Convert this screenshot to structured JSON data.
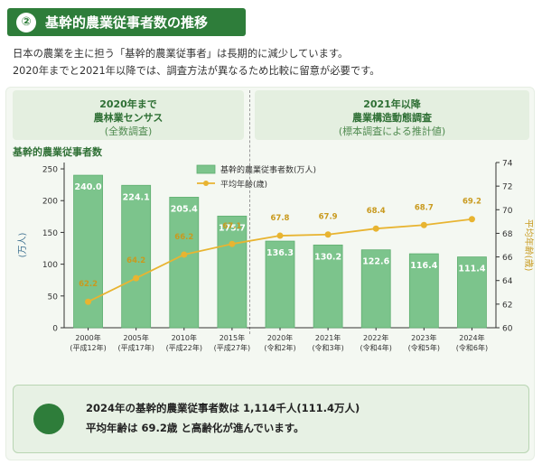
{
  "header": {
    "badge": "②",
    "title": "基幹的農業従事者数の推移"
  },
  "intro": {
    "line1": "日本の農業を主に担う「基幹的農業従事者」は長期的に減少しています。",
    "line2": "2020年までと2021年以降では、調査方法が異なるため比較に留意が必要です。"
  },
  "periods": {
    "left": {
      "title1": "2020年まで",
      "title2": "農林業センサス",
      "sub": "(全数調査)"
    },
    "right": {
      "title1": "2021年以降",
      "title2": "農業構造動態調査",
      "sub": "(標本調査による推計値)"
    }
  },
  "chart_data": {
    "type": "bar",
    "title": "基幹的農業従事者数",
    "categories": [
      [
        "2000年",
        "(平成12年)"
      ],
      [
        "2005年",
        "(平成17年)"
      ],
      [
        "2010年",
        "(平成22年)"
      ],
      [
        "2015年",
        "(平成27年)"
      ],
      [
        "2020年",
        "(令和2年)"
      ],
      [
        "2021年",
        "(令和3年)"
      ],
      [
        "2022年",
        "(令和4年)"
      ],
      [
        "2023年",
        "(令和5年)"
      ],
      [
        "2024年",
        "(令和6年)"
      ]
    ],
    "series": [
      {
        "name": "基幹的農業従事者数(万人)",
        "type": "bar",
        "axis": "left",
        "color": "#7cc48c",
        "values": [
          240.0,
          224.1,
          205.4,
          175.7,
          136.3,
          130.2,
          122.6,
          116.4,
          111.4
        ],
        "labels": [
          "240.0",
          "224.1",
          "205.4",
          "175.7",
          "136.3",
          "130.2",
          "122.6",
          "116.4",
          "111.4"
        ]
      },
      {
        "name": "平均年齢(歳)",
        "type": "line",
        "axis": "right",
        "color": "#e8b431",
        "values": [
          62.2,
          64.2,
          66.2,
          67.1,
          67.8,
          67.9,
          68.4,
          68.7,
          69.2
        ],
        "labels": [
          "62.2",
          "64.2",
          "66.2",
          "67.1",
          "67.8",
          "67.9",
          "68.4",
          "68.7",
          "69.2"
        ]
      }
    ],
    "ylabel_left": "(万人)",
    "ylabel_right": "平均年齢(歳)",
    "ylim_left": [
      0,
      260
    ],
    "yticks_left": [
      0,
      50,
      100,
      150,
      200,
      250
    ],
    "ylim_right": [
      60,
      74
    ],
    "yticks_right": [
      60,
      62,
      64,
      66,
      68,
      70,
      72,
      74
    ],
    "legend": "top-center",
    "grid": false
  },
  "summary": {
    "line1": "2024年の基幹的農業従事者数は 1,114千人(111.4万人)",
    "line2": "平均年齢は 69.2歳 と高齢化が進んでいます。"
  },
  "colors": {
    "accent": "#2e7d3a",
    "bar": "#7cc48c",
    "line": "#e8b431"
  }
}
